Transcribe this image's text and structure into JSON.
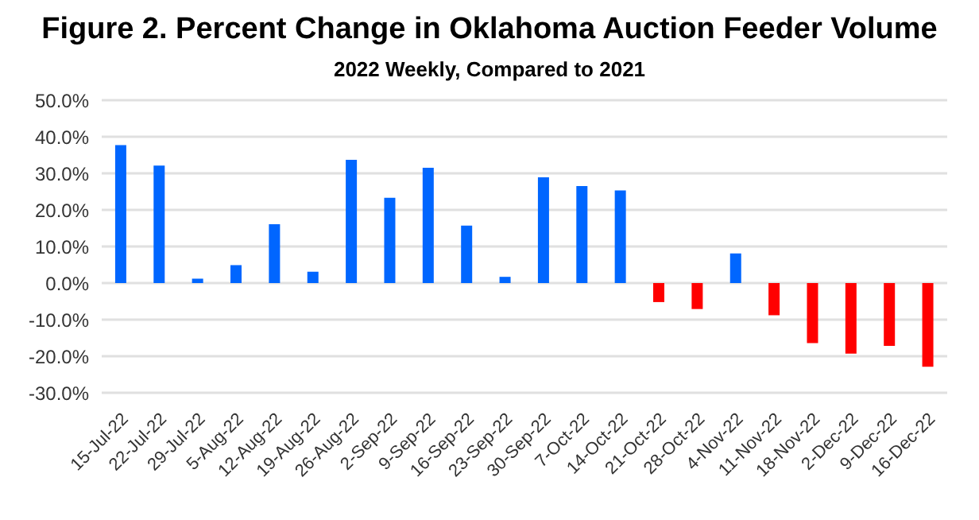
{
  "chart_data": {
    "type": "bar",
    "title": "Figure 2.  Percent Change in Oklahoma Auction Feeder Volume",
    "subtitle": "2022 Weekly, Compared to 2021",
    "categories": [
      "15-Jul-22",
      "22-Jul-22",
      "29-Jul-22",
      "5-Aug-22",
      "12-Aug-22",
      "19-Aug-22",
      "26-Aug-22",
      "2-Sep-22",
      "9-Sep-22",
      "16-Sep-22",
      "23-Sep-22",
      "30-Sep-22",
      "7-Oct-22",
      "14-Oct-22",
      "21-Oct-22",
      "28-Oct-22",
      "4-Nov-22",
      "11-Nov-22",
      "18-Nov-22",
      "2-Dec-22",
      "9-Dec-22",
      "16-Dec-22"
    ],
    "values": [
      37.7,
      32.1,
      1.2,
      4.9,
      16.1,
      3.1,
      33.7,
      23.3,
      31.5,
      15.7,
      1.7,
      28.9,
      26.5,
      25.3,
      -5.2,
      -7.1,
      8.1,
      -8.8,
      -16.4,
      -19.3,
      -17.2,
      -22.9
    ],
    "colors": [
      "#0066ff",
      "#0066ff",
      "#0066ff",
      "#0066ff",
      "#0066ff",
      "#0066ff",
      "#0066ff",
      "#0066ff",
      "#0066ff",
      "#0066ff",
      "#0066ff",
      "#0066ff",
      "#0066ff",
      "#0066ff",
      "#ff0000",
      "#ff0000",
      "#0066ff",
      "#ff0000",
      "#ff0000",
      "#ff0000",
      "#ff0000",
      "#ff0000"
    ],
    "ylim": [
      -30,
      50
    ],
    "yticks": [
      {
        "value": -30,
        "label": "-30.0%"
      },
      {
        "value": -20,
        "label": "-20.0%"
      },
      {
        "value": -10,
        "label": "-10.0%"
      },
      {
        "value": 0,
        "label": "0.0%"
      },
      {
        "value": 10,
        "label": "10.0%"
      },
      {
        "value": 20,
        "label": "20.0%"
      },
      {
        "value": 30,
        "label": "30.0%"
      },
      {
        "value": 40,
        "label": "40.0%"
      },
      {
        "value": 50,
        "label": "50.0%"
      }
    ],
    "grid": "y"
  }
}
